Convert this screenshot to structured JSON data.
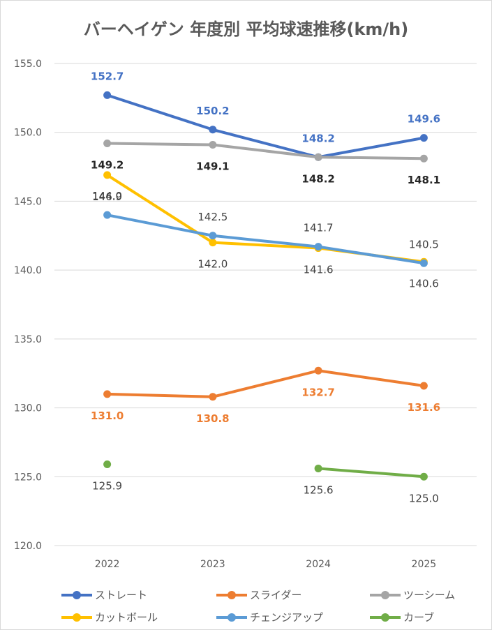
{
  "chart_data": {
    "type": "line",
    "title": "バーヘイゲン 年度別 平均球速推移(km/h)",
    "categories": [
      "2022",
      "2023",
      "2024",
      "2025"
    ],
    "ylim": [
      120.0,
      155.0
    ],
    "yticks": [
      "120.0",
      "125.0",
      "130.0",
      "135.0",
      "140.0",
      "145.0",
      "150.0",
      "155.0"
    ],
    "grid": true,
    "legend_position": "bottom",
    "series": [
      {
        "name": "ストレート",
        "color": "#4472C4",
        "values": [
          152.7,
          150.2,
          148.2,
          149.6
        ],
        "labels": [
          "152.7",
          "150.2",
          "148.2",
          "149.6"
        ],
        "label_pos": "above",
        "label_color": "#4472C4",
        "bold": true
      },
      {
        "name": "スライダー",
        "color": "#ED7D31",
        "values": [
          131.0,
          130.8,
          132.7,
          131.6
        ],
        "labels": [
          "131.0",
          "130.8",
          "132.7",
          "131.6"
        ],
        "label_pos": "below",
        "label_color": "#ED7D31",
        "bold": true
      },
      {
        "name": "ツーシーム",
        "color": "#A5A5A5",
        "values": [
          149.2,
          149.1,
          148.2,
          148.1
        ],
        "labels": [
          "149.2",
          "149.1",
          "148.2",
          "148.1"
        ],
        "label_pos": "below",
        "label_color": "#262626",
        "bold": true
      },
      {
        "name": "カットボール",
        "color": "#FFC000",
        "values": [
          146.9,
          142.0,
          141.6,
          140.6
        ],
        "labels": [
          "146.9",
          "142.0",
          "141.6",
          "140.6"
        ],
        "label_pos": "below",
        "label_color": "#404040",
        "bold": false
      },
      {
        "name": "チェンジアップ",
        "color": "#5B9BD5",
        "values": [
          144.0,
          142.5,
          141.7,
          140.5
        ],
        "labels": [
          "144.0",
          "142.5",
          "141.7",
          "140.5"
        ],
        "label_pos": "above",
        "label_color": "#404040",
        "bold": false
      },
      {
        "name": "カーブ",
        "color": "#70AD47",
        "values": [
          125.9,
          null,
          125.6,
          125.0
        ],
        "labels": [
          "125.9",
          null,
          "125.6",
          "125.0"
        ],
        "label_pos": "below",
        "label_color": "#404040",
        "bold": false
      }
    ]
  }
}
